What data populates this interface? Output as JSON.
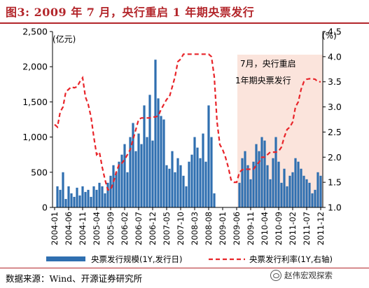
{
  "header": {
    "title": "图3:  2009 年 7 月，央行重启 1 年期央票发行"
  },
  "footer": {
    "source": "数据来源：Wind、开源证券研究所",
    "watermark": "赵伟宏观探索",
    "watermark_icon": "wechat-icon"
  },
  "chart_data": {
    "type": "bar",
    "title": "",
    "y_unit_left": "(亿元)",
    "y_unit_right": "(%)",
    "ylim_left": [
      0,
      2500
    ],
    "yticks_left": [
      "0",
      "500",
      "1,000",
      "1,500",
      "2,000",
      "2,500"
    ],
    "ylim_right": [
      1.0,
      4.5
    ],
    "yticks_right": [
      "1.0",
      "1.5",
      "2.0",
      "2.5",
      "3.0",
      "3.5",
      "4.0",
      "4.5"
    ],
    "x_range": [
      "2004-01",
      "2011-12"
    ],
    "xticks": [
      "2004-01",
      "2004-06",
      "2004-11",
      "2005-04",
      "2005-09",
      "2006-02",
      "2006-07",
      "2006-12",
      "2007-05",
      "2007-10",
      "2008-03",
      "2008-08",
      "2009-01",
      "2009-06",
      "2009-11",
      "2010-04",
      "2010-09",
      "2011-02",
      "2011-07",
      "2011-12"
    ],
    "grid": false,
    "legend_position": "bottom",
    "highlight_region": {
      "from": "2009-07",
      "to": "2011-12",
      "color": "#fbe4dc"
    },
    "annotation": {
      "lines": [
        "7月，央行重启",
        "1年期央票发行"
      ]
    },
    "colors": {
      "bars": "#2f6fb0",
      "rate": "#e8252a",
      "title": "#b3262b"
    },
    "series": [
      {
        "name": "央票发行规模(1Y,发行日)",
        "axis": "left",
        "kind": "bar",
        "points": [
          [
            "2004-02",
            300
          ],
          [
            "2004-03",
            250
          ],
          [
            "2004-04",
            500
          ],
          [
            "2004-05",
            120
          ],
          [
            "2004-06",
            300
          ],
          [
            "2004-07",
            200
          ],
          [
            "2004-08",
            150
          ],
          [
            "2004-09",
            280
          ],
          [
            "2004-10",
            170
          ],
          [
            "2004-11",
            300
          ],
          [
            "2004-12",
            220
          ],
          [
            "2005-01",
            250
          ],
          [
            "2005-02",
            150
          ],
          [
            "2005-03",
            300
          ],
          [
            "2005-04",
            250
          ],
          [
            "2005-05",
            350
          ],
          [
            "2005-06",
            300
          ],
          [
            "2005-07",
            200
          ],
          [
            "2005-08",
            350
          ],
          [
            "2005-09",
            450
          ],
          [
            "2005-10",
            600
          ],
          [
            "2005-11",
            500
          ],
          [
            "2005-12",
            650
          ],
          [
            "2006-01",
            750
          ],
          [
            "2006-02",
            900
          ],
          [
            "2006-03",
            500
          ],
          [
            "2006-04",
            1000
          ],
          [
            "2006-05",
            1200
          ],
          [
            "2006-06",
            800
          ],
          [
            "2006-07",
            1050
          ],
          [
            "2006-08",
            900
          ],
          [
            "2006-09",
            1450
          ],
          [
            "2006-10",
            1000
          ],
          [
            "2006-11",
            1600
          ],
          [
            "2006-12",
            950
          ],
          [
            "2007-01",
            2100
          ],
          [
            "2007-02",
            1550
          ],
          [
            "2007-03",
            1300
          ],
          [
            "2007-04",
            1250
          ],
          [
            "2007-05",
            600
          ],
          [
            "2007-06",
            550
          ],
          [
            "2007-07",
            800
          ],
          [
            "2007-08",
            500
          ],
          [
            "2007-09",
            700
          ],
          [
            "2007-10",
            600
          ],
          [
            "2007-11",
            450
          ],
          [
            "2007-12",
            300
          ],
          [
            "2008-01",
            650
          ],
          [
            "2008-02",
            750
          ],
          [
            "2008-03",
            1000
          ],
          [
            "2008-04",
            850
          ],
          [
            "2008-05",
            700
          ],
          [
            "2008-06",
            1050
          ],
          [
            "2008-07",
            650
          ],
          [
            "2008-08",
            1450
          ],
          [
            "2008-09",
            1000
          ],
          [
            "2008-10",
            200
          ],
          [
            "2008-11",
            0
          ],
          [
            "2008-12",
            0
          ],
          [
            "2009-01",
            0
          ],
          [
            "2009-02",
            0
          ],
          [
            "2009-03",
            0
          ],
          [
            "2009-04",
            0
          ],
          [
            "2009-05",
            0
          ],
          [
            "2009-06",
            0
          ],
          [
            "2009-07",
            350
          ],
          [
            "2009-08",
            700
          ],
          [
            "2009-09",
            800
          ],
          [
            "2009-10",
            600
          ],
          [
            "2009-11",
            400
          ],
          [
            "2009-12",
            650
          ],
          [
            "2010-01",
            900
          ],
          [
            "2010-02",
            800
          ],
          [
            "2010-03",
            1000
          ],
          [
            "2010-04",
            950
          ],
          [
            "2010-05",
            600
          ],
          [
            "2010-06",
            400
          ],
          [
            "2010-07",
            700
          ],
          [
            "2010-08",
            1000
          ],
          [
            "2010-09",
            650
          ],
          [
            "2010-10",
            350
          ],
          [
            "2010-11",
            550
          ],
          [
            "2010-12",
            300
          ],
          [
            "2011-01",
            450
          ],
          [
            "2011-02",
            500
          ],
          [
            "2011-03",
            700
          ],
          [
            "2011-04",
            650
          ],
          [
            "2011-05",
            550
          ],
          [
            "2011-06",
            450
          ],
          [
            "2011-07",
            400
          ],
          [
            "2011-08",
            350
          ],
          [
            "2011-09",
            200
          ],
          [
            "2011-10",
            250
          ],
          [
            "2011-11",
            500
          ],
          [
            "2011-12",
            450
          ]
        ]
      },
      {
        "name": "央票发行利率(1Y,右轴)",
        "axis": "right",
        "kind": "line",
        "style": "dashed",
        "points": [
          [
            "2004-01",
            2.65
          ],
          [
            "2004-02",
            2.6
          ],
          [
            "2004-03",
            2.9
          ],
          [
            "2004-04",
            3.0
          ],
          [
            "2004-05",
            3.3
          ],
          [
            "2004-06",
            3.35
          ],
          [
            "2004-07",
            3.4
          ],
          [
            "2004-08",
            3.38
          ],
          [
            "2004-09",
            3.4
          ],
          [
            "2004-10",
            3.5
          ],
          [
            "2004-11",
            3.58
          ],
          [
            "2004-12",
            3.2
          ],
          [
            "2005-01",
            3.05
          ],
          [
            "2005-02",
            2.8
          ],
          [
            "2005-03",
            2.4
          ],
          [
            "2005-04",
            2.05
          ],
          [
            "2005-05",
            2.1
          ],
          [
            "2005-06",
            1.8
          ],
          [
            "2005-07",
            1.55
          ],
          [
            "2005-08",
            1.35
          ],
          [
            "2005-09",
            1.35
          ],
          [
            "2005-10",
            1.5
          ],
          [
            "2005-11",
            1.7
          ],
          [
            "2005-12",
            1.85
          ],
          [
            "2006-01",
            1.88
          ],
          [
            "2006-02",
            1.95
          ],
          [
            "2006-03",
            2.05
          ],
          [
            "2006-04",
            2.15
          ],
          [
            "2006-05",
            2.35
          ],
          [
            "2006-06",
            2.55
          ],
          [
            "2006-07",
            2.75
          ],
          [
            "2006-08",
            2.78
          ],
          [
            "2006-09",
            2.78
          ],
          [
            "2006-10",
            2.78
          ],
          [
            "2006-11",
            2.78
          ],
          [
            "2006-12",
            2.8
          ],
          [
            "2007-01",
            2.8
          ],
          [
            "2007-02",
            2.82
          ],
          [
            "2007-03",
            2.95
          ],
          [
            "2007-04",
            3.05
          ],
          [
            "2007-05",
            3.15
          ],
          [
            "2007-06",
            3.2
          ],
          [
            "2007-07",
            3.4
          ],
          [
            "2007-08",
            3.6
          ],
          [
            "2007-09",
            3.9
          ],
          [
            "2007-10",
            3.95
          ],
          [
            "2007-11",
            4.05
          ],
          [
            "2007-12",
            4.05
          ],
          [
            "2008-01",
            4.05
          ],
          [
            "2008-02",
            4.05
          ],
          [
            "2008-03",
            4.05
          ],
          [
            "2008-04",
            4.05
          ],
          [
            "2008-05",
            4.05
          ],
          [
            "2008-06",
            4.05
          ],
          [
            "2008-07",
            4.05
          ],
          [
            "2008-08",
            4.05
          ],
          [
            "2008-09",
            4.0
          ],
          [
            "2008-10",
            3.6
          ],
          [
            "2008-11",
            2.7
          ],
          [
            "2008-12",
            2.25
          ],
          [
            "2009-01",
            2.15
          ],
          [
            "2009-02",
            2.0
          ],
          [
            "2009-03",
            1.8
          ],
          [
            "2009-04",
            1.55
          ],
          [
            "2009-05",
            1.5
          ],
          [
            "2009-06",
            1.5
          ],
          [
            "2009-07",
            1.7
          ],
          [
            "2009-08",
            1.75
          ],
          [
            "2009-09",
            1.76
          ],
          [
            "2009-10",
            1.76
          ],
          [
            "2009-11",
            1.76
          ],
          [
            "2009-12",
            1.76
          ],
          [
            "2010-01",
            1.84
          ],
          [
            "2010-02",
            1.9
          ],
          [
            "2010-03",
            2.0
          ],
          [
            "2010-04",
            2.0
          ],
          [
            "2010-05",
            2.05
          ],
          [
            "2010-06",
            2.1
          ],
          [
            "2010-07",
            2.1
          ],
          [
            "2010-08",
            2.1
          ],
          [
            "2010-09",
            2.12
          ],
          [
            "2010-10",
            2.2
          ],
          [
            "2010-11",
            2.4
          ],
          [
            "2010-12",
            2.55
          ],
          [
            "2011-01",
            2.6
          ],
          [
            "2011-02",
            2.7
          ],
          [
            "2011-03",
            3.0
          ],
          [
            "2011-04",
            3.1
          ],
          [
            "2011-05",
            3.35
          ],
          [
            "2011-06",
            3.5
          ],
          [
            "2011-07",
            3.55
          ],
          [
            "2011-08",
            3.56
          ],
          [
            "2011-09",
            3.56
          ],
          [
            "2011-10",
            3.55
          ],
          [
            "2011-11",
            3.5
          ],
          [
            "2011-12",
            3.5
          ]
        ]
      }
    ]
  }
}
